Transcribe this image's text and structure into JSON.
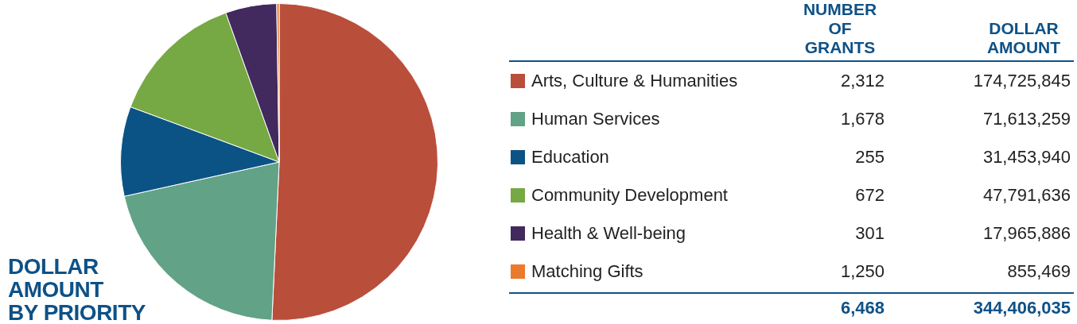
{
  "chart_data": [
    {
      "type": "pie",
      "title": "DOLLAR AMOUNT BY PRIORITY",
      "legend_title": "DOLLAR AMOUNT",
      "categories": [
        "Arts, Culture & Humanities",
        "Human Services",
        "Education",
        "Community Development",
        "Health & Well-being",
        "Matching Gifts"
      ],
      "colors": [
        "#b94e3b",
        "#62a287",
        "#0b5384",
        "#76a844",
        "#42295e",
        "#ec7a2c"
      ],
      "values": [
        174725845,
        71613259,
        31453940,
        47791636,
        17965886,
        855469
      ],
      "value_labels": [
        "174,725,845",
        "71,613,259",
        "31,453,940",
        "47,791,636",
        "17,965,886",
        "855,469"
      ],
      "totals": [
        "344,406,035"
      ],
      "legend": "right"
    },
    {
      "type": "other",
      "title": "NUMBER OF GRANTS",
      "categories": [
        null,
        null,
        null,
        null,
        null,
        null
      ],
      "values": [
        2312,
        1678,
        255,
        672,
        301,
        1250
      ],
      "value_labels": [
        "2,312",
        "1,678",
        "255",
        "672",
        "301",
        "1,250"
      ],
      "totals": [
        "6,468"
      ]
    }
  ]
}
